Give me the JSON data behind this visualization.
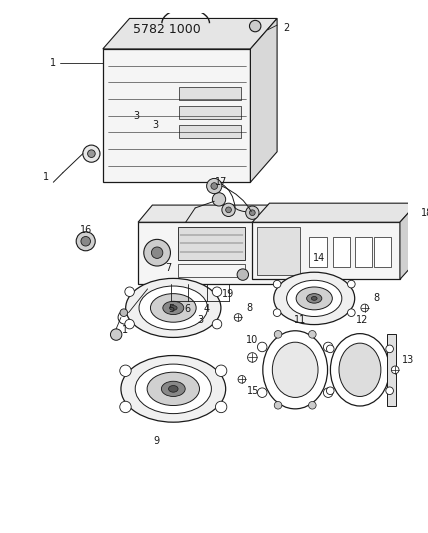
{
  "title": "5782 1000",
  "bg_color": "#ffffff",
  "line_color": "#1a1a1a",
  "figsize": [
    4.28,
    5.33
  ],
  "dpi": 100
}
